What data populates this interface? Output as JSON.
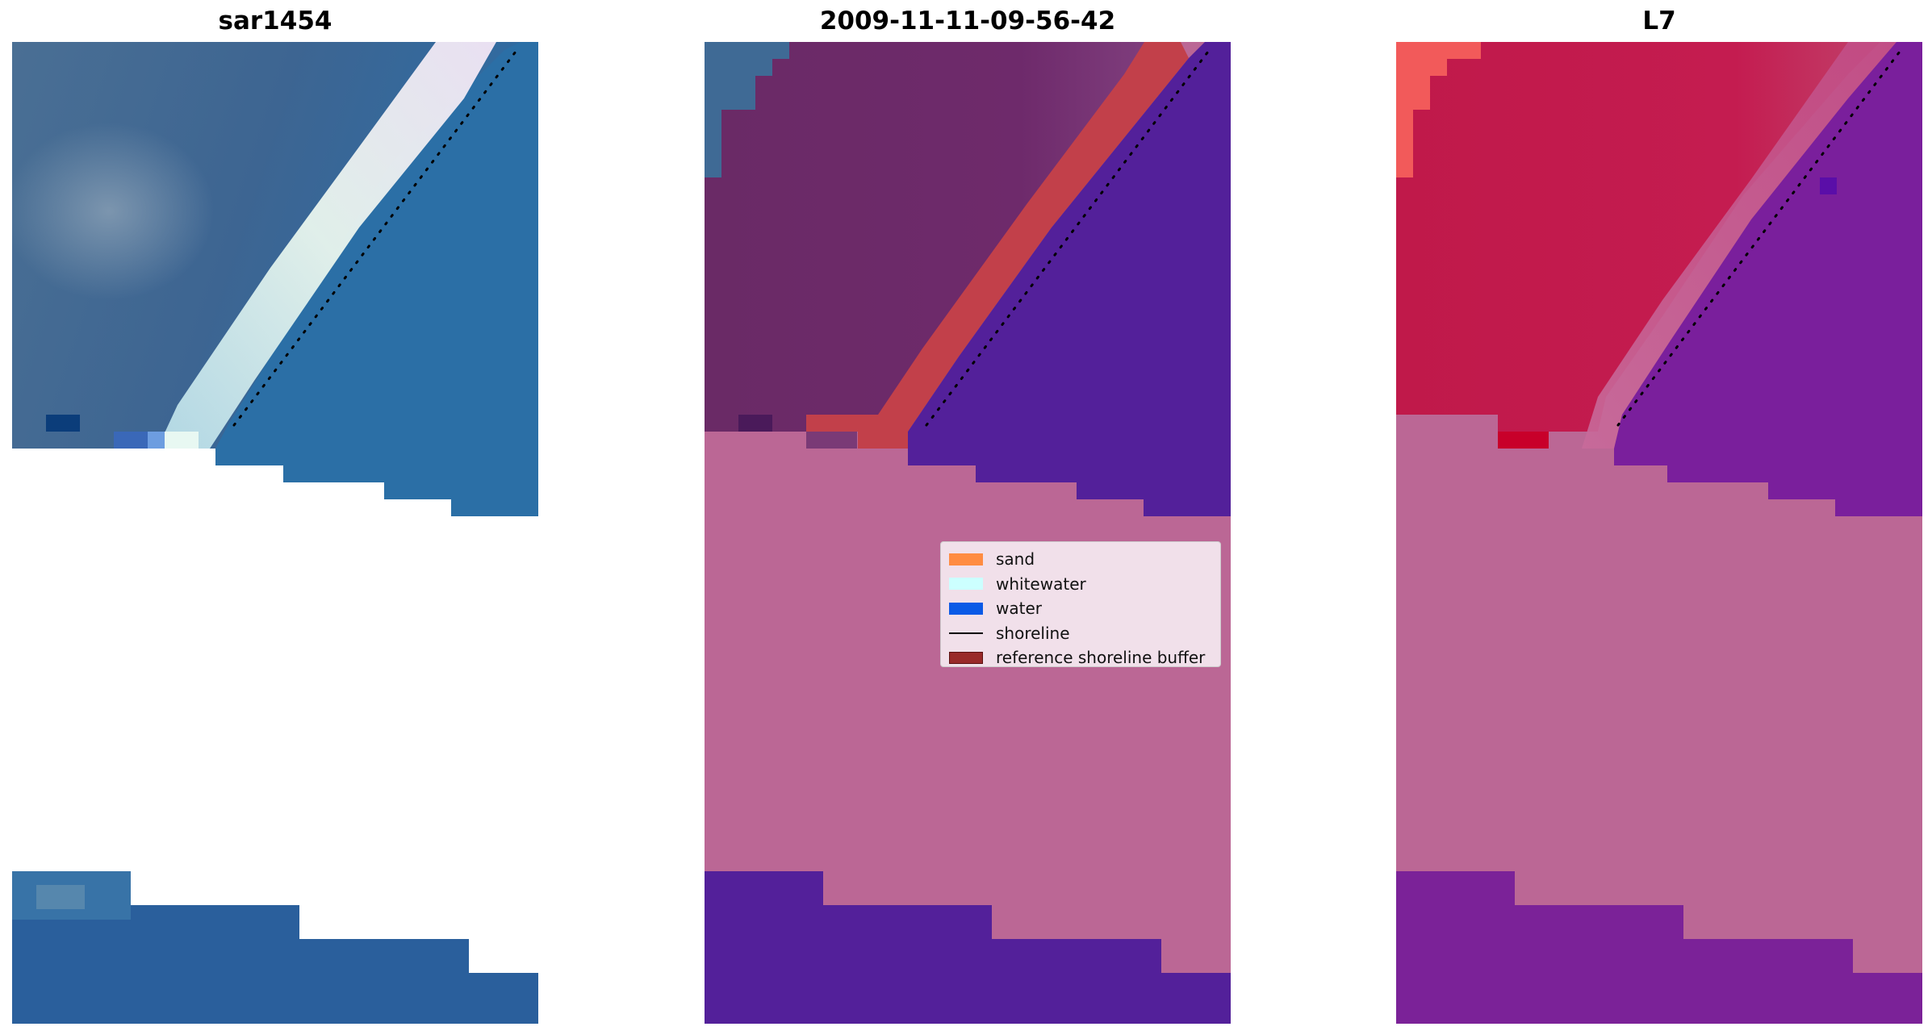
{
  "panels": [
    {
      "title": "sar1454",
      "image": "rgb-satellite-image"
    },
    {
      "title": "2009-11-11-09-56-42",
      "image": "classified-image"
    },
    {
      "title": "L7",
      "image": "mndwi-image"
    }
  ],
  "legend": {
    "items": [
      {
        "label": "sand",
        "kind": "patch",
        "color": "#ff8c42"
      },
      {
        "label": "whitewater",
        "kind": "patch",
        "color": "#ccffff"
      },
      {
        "label": "water",
        "kind": "patch",
        "color": "#0a5ae6"
      },
      {
        "label": "shoreline",
        "kind": "line",
        "color": "#000000"
      },
      {
        "label": "reference shoreline buffer",
        "kind": "patch",
        "color": "#992a2a"
      }
    ]
  },
  "colors": {
    "background": "#ffffff",
    "land_mask": "#bb6795",
    "water_class": "#53209a",
    "sand_land": "#6e2a6b",
    "buffer": "#c2404a",
    "mndwi_high": "#c31a4c",
    "mndwi_low": "#7a1f9c",
    "rgb_land": "#3f6a95",
    "rgb_sea": "#2a6fa8"
  }
}
